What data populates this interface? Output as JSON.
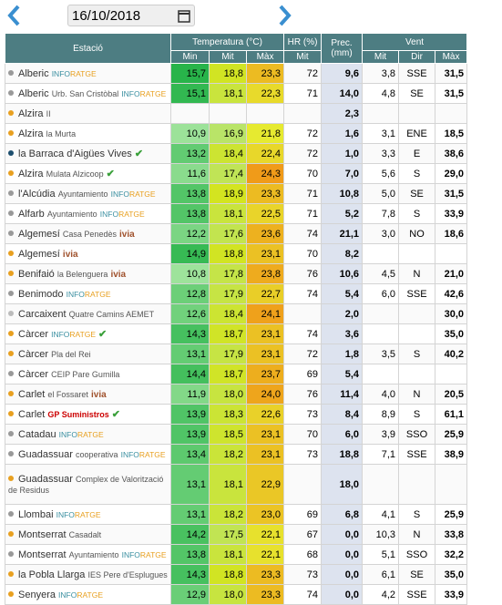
{
  "header": {
    "date": "16/10/2018"
  },
  "table": {
    "headers": {
      "station": "Estació",
      "temperature": "Temperatura (°C)",
      "humidity": "HR (%)",
      "precipitation": "Prec.",
      "precipitation_unit": "(mm)",
      "wind": "Vent"
    },
    "subheaders": [
      "Min",
      "Mit",
      "Màx",
      "Mit",
      "Mit",
      "Dir",
      "Màx"
    ],
    "rows": [
      {
        "name": "Alberic",
        "detail": "",
        "brand": "INFORATGE",
        "check": false,
        "cells": [
          "15,7",
          "18,8",
          "23,3",
          "72",
          "9,6",
          "3,8",
          "SSE",
          "31,5"
        ]
      },
      {
        "name": "Alberic",
        "detail": "Urb. San Cristòbal",
        "brand": "INFORATGE",
        "check": false,
        "cells": [
          "15,1",
          "18,1",
          "22,3",
          "71",
          "14,0",
          "4,8",
          "SE",
          "31,5"
        ]
      },
      {
        "name": "Alzira",
        "detail": "II",
        "brand": "",
        "check": false,
        "cells": [
          null,
          null,
          null,
          null,
          "2,3",
          null,
          null,
          null
        ]
      },
      {
        "name": "Alzira",
        "detail": "la Murta",
        "brand": "",
        "check": false,
        "cells": [
          "10,9",
          "16,9",
          "21,8",
          "72",
          "1,6",
          "3,1",
          "ENE",
          "18,5"
        ]
      },
      {
        "name": "la Barraca d'Aigües Vives",
        "detail": "",
        "brand": "",
        "check": true,
        "cells": [
          "13,2",
          "18,4",
          "22,4",
          "72",
          "1,0",
          "3,3",
          "E",
          "38,6"
        ]
      },
      {
        "name": "Alzira",
        "detail": "Mulata Alzicoop",
        "brand": "",
        "check": true,
        "cells": [
          "11,6",
          "17,4",
          "24,3",
          "70",
          "7,0",
          "5,6",
          "S",
          "29,0"
        ]
      },
      {
        "name": "l'Alcúdia",
        "detail": "Ayuntamiento",
        "brand": "INFORATGE",
        "check": false,
        "cells": [
          "13,8",
          "18,9",
          "23,3",
          "71",
          "10,8",
          "5,0",
          "SE",
          "31,5"
        ]
      },
      {
        "name": "Alfarb",
        "detail": "Ayuntamiento",
        "brand": "INFORATGE",
        "check": false,
        "cells": [
          "13,8",
          "18,1",
          "22,5",
          "71",
          "5,2",
          "7,8",
          "S",
          "33,9"
        ]
      },
      {
        "name": "Algemesí",
        "detail": "Casa Penedès",
        "brand": "ivia",
        "check": false,
        "cells": [
          "12,2",
          "17,6",
          "23,6",
          "74",
          "21,1",
          "3,0",
          "NO",
          "18,6"
        ]
      },
      {
        "name": "Algemesí",
        "detail": "",
        "brand": "ivia",
        "check": false,
        "cells": [
          "14,9",
          "18,8",
          "23,1",
          "70",
          "8,2",
          null,
          null,
          null
        ]
      },
      {
        "name": "Benifaió",
        "detail": "la Belenguera",
        "brand": "ivia",
        "check": false,
        "cells": [
          "10,8",
          "17,8",
          "23,8",
          "76",
          "10,6",
          "4,5",
          "N",
          "21,0"
        ]
      },
      {
        "name": "Benimodo",
        "detail": "",
        "brand": "INFORATGE",
        "check": false,
        "cells": [
          "12,8",
          "17,9",
          "22,7",
          "74",
          "5,4",
          "6,0",
          "SSE",
          "42,6"
        ]
      },
      {
        "name": "Carcaixent",
        "detail": "Quatre Camins AEMET",
        "brand": "",
        "check": false,
        "cells": [
          "12,6",
          "18,4",
          "24,1",
          null,
          "2,0",
          null,
          null,
          "30,0"
        ]
      },
      {
        "name": "Càrcer",
        "detail": "",
        "brand": "INFORATGE",
        "check": true,
        "cells": [
          "14,3",
          "18,7",
          "23,1",
          "74",
          "3,6",
          null,
          null,
          "35,0"
        ]
      },
      {
        "name": "Càrcer",
        "detail": "Pla del Rei",
        "brand": "",
        "check": false,
        "cells": [
          "13,1",
          "17,9",
          "23,1",
          "72",
          "1,8",
          "3,5",
          "S",
          "40,2"
        ]
      },
      {
        "name": "Càrcer",
        "detail": "CEIP Pare Gumilla",
        "brand": "",
        "check": false,
        "cells": [
          "14,4",
          "18,7",
          "23,7",
          "69",
          "5,4",
          null,
          null,
          null
        ]
      },
      {
        "name": "Carlet",
        "detail": "el Fossaret",
        "brand": "ivia",
        "check": false,
        "cells": [
          "11,9",
          "18,0",
          "24,0",
          "76",
          "11,4",
          "4,0",
          "N",
          "20,5"
        ]
      },
      {
        "name": "Carlet",
        "detail": "",
        "brand": "GP Suministros",
        "check": true,
        "cells": [
          "13,9",
          "18,3",
          "22,6",
          "73",
          "8,4",
          "8,9",
          "S",
          "61,1"
        ]
      },
      {
        "name": "Catadau",
        "detail": "",
        "brand": "INFORATGE",
        "check": false,
        "cells": [
          "13,9",
          "18,5",
          "23,1",
          "70",
          "6,0",
          "3,9",
          "SSO",
          "25,9"
        ]
      },
      {
        "name": "Guadassuar",
        "detail": "cooperativa",
        "brand": "INFORATGE",
        "check": false,
        "cells": [
          "13,4",
          "18,2",
          "23,1",
          "73",
          "18,8",
          "7,1",
          "SSE",
          "38,9"
        ]
      },
      {
        "name": "Guadassuar",
        "detail": "Complex de Valorització de Residus",
        "brand": "",
        "check": false,
        "cells": [
          "13,1",
          "18,1",
          "22,9",
          null,
          "18,0",
          null,
          null,
          null
        ]
      },
      {
        "name": "Llombai",
        "detail": "",
        "brand": "INFORATGE",
        "check": false,
        "cells": [
          "13,1",
          "18,2",
          "23,0",
          "69",
          "6,8",
          "4,1",
          "S",
          "25,9"
        ]
      },
      {
        "name": "Montserrat",
        "detail": "Casadalt",
        "brand": "",
        "check": false,
        "cells": [
          "14,2",
          "17,5",
          "22,1",
          "67",
          "0,0",
          "10,3",
          "N",
          "33,8"
        ]
      },
      {
        "name": "Montserrat",
        "detail": "Ayuntamiento",
        "brand": "INFORATGE",
        "check": false,
        "cells": [
          "13,8",
          "18,1",
          "22,1",
          "68",
          "0,0",
          "5,1",
          "SSO",
          "32,2"
        ]
      },
      {
        "name": "la Pobla Llarga",
        "detail": "IES Pere d'Esplugues",
        "brand": "",
        "check": false,
        "cells": [
          "14,3",
          "18,8",
          "23,3",
          "73",
          "0,0",
          "6,1",
          "SE",
          "35,0"
        ]
      },
      {
        "name": "Senyera",
        "detail": "",
        "brand": "INFORATGE",
        "check": false,
        "cells": [
          "12,9",
          "18,0",
          "23,3",
          "74",
          "0,0",
          "4,2",
          "SSE",
          "33,9"
        ]
      }
    ]
  }
}
